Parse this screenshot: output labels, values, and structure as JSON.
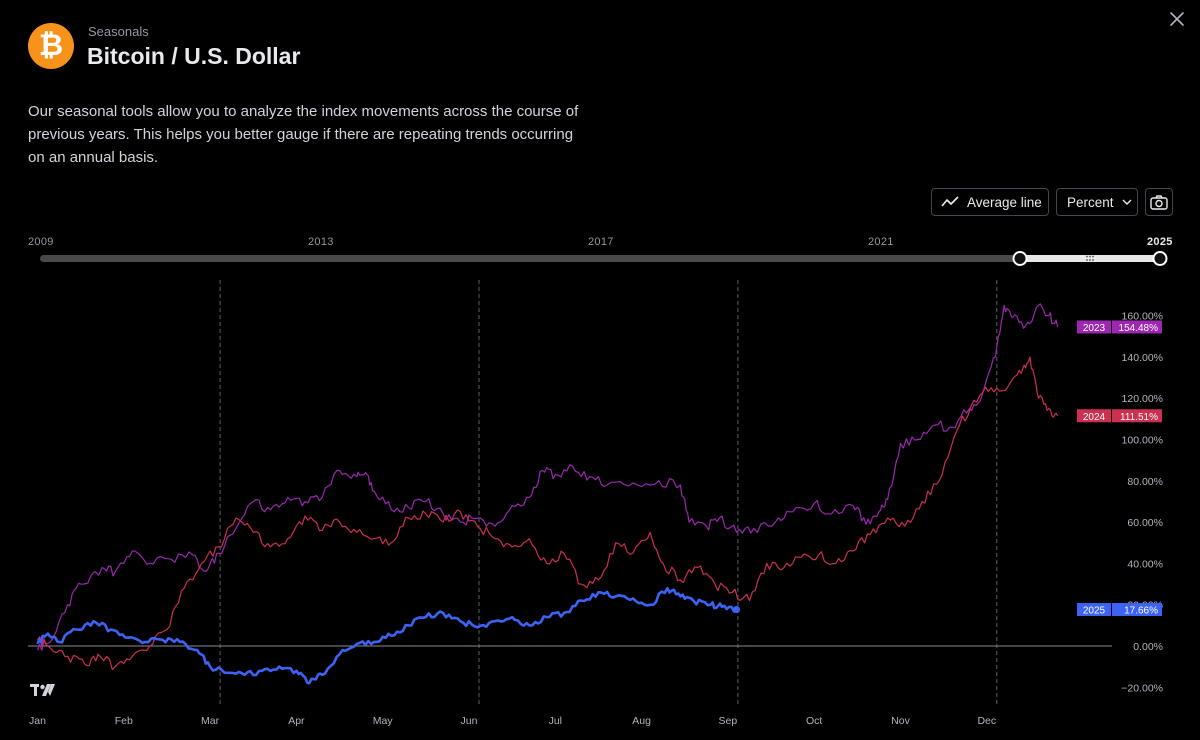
{
  "header": {
    "kicker": "Seasonals",
    "title": "Bitcoin / U.S. Dollar",
    "logo_symbol": "₿"
  },
  "description": "Our seasonal tools allow you to analyze the index movements across the course of previous years. This helps you better gauge if there are repeating trends occurring on an annual basis.",
  "toolbar": {
    "average_line_label": "Average line",
    "mode_label": "Percent"
  },
  "year_range": {
    "ticks": [
      "2009",
      "2013",
      "2017",
      "2021",
      "2025"
    ],
    "selected_start": 2023,
    "selected_end": 2025
  },
  "colors": {
    "series_2023": "#9c27b0",
    "series_2024": "#cc2f4f",
    "series_2025": "#3d63f5",
    "logo": "#f7931a"
  },
  "chart_data": {
    "type": "line",
    "x_label_months": [
      "Jan",
      "Feb",
      "Mar",
      "Apr",
      "May",
      "Jun",
      "Jul",
      "Aug",
      "Sep",
      "Oct",
      "Nov",
      "Dec"
    ],
    "y_tick_labels": [
      "160.00%",
      "140.00%",
      "120.00%",
      "100.00%",
      "80.00%",
      "60.00%",
      "40.00%",
      "20.00%",
      "0.00%",
      "−20.00%"
    ],
    "ylim": [
      -20,
      165
    ],
    "zero_line": true,
    "quarter_dividers_months": [
      "Mar",
      "Jun",
      "Sep",
      "Dec"
    ],
    "series": [
      {
        "name": "2023",
        "color": "#9c27b0",
        "last_label": "154.48%",
        "points": [
          [
            0,
            -2
          ],
          [
            0.15,
            2
          ],
          [
            0.35,
            20
          ],
          [
            0.5,
            30
          ],
          [
            0.75,
            38
          ],
          [
            0.9,
            36
          ],
          [
            1.1,
            46
          ],
          [
            1.3,
            40
          ],
          [
            1.55,
            42
          ],
          [
            1.8,
            44
          ],
          [
            1.95,
            36
          ],
          [
            2.1,
            45
          ],
          [
            2.3,
            57
          ],
          [
            2.5,
            70
          ],
          [
            2.7,
            66
          ],
          [
            2.9,
            72
          ],
          [
            3.1,
            70
          ],
          [
            3.3,
            72
          ],
          [
            3.5,
            85
          ],
          [
            3.7,
            82
          ],
          [
            3.8,
            84
          ],
          [
            3.9,
            75
          ],
          [
            4.1,
            66
          ],
          [
            4.3,
            67
          ],
          [
            4.5,
            70
          ],
          [
            4.7,
            64
          ],
          [
            4.9,
            60
          ],
          [
            5.1,
            62
          ],
          [
            5.3,
            58
          ],
          [
            5.5,
            68
          ],
          [
            5.7,
            72
          ],
          [
            5.85,
            85
          ],
          [
            6.0,
            83
          ],
          [
            6.2,
            87
          ],
          [
            6.4,
            82
          ],
          [
            6.6,
            78
          ],
          [
            6.9,
            79
          ],
          [
            7.2,
            80
          ],
          [
            7.45,
            78
          ],
          [
            7.55,
            60
          ],
          [
            7.75,
            58
          ],
          [
            7.9,
            62
          ],
          [
            8.1,
            55
          ],
          [
            8.3,
            57
          ],
          [
            8.55,
            60
          ],
          [
            8.75,
            65
          ],
          [
            9.0,
            69
          ],
          [
            9.2,
            64
          ],
          [
            9.45,
            68
          ],
          [
            9.6,
            59
          ],
          [
            9.75,
            65
          ],
          [
            9.85,
            71
          ],
          [
            10.0,
            98
          ],
          [
            10.2,
            100
          ],
          [
            10.4,
            107
          ],
          [
            10.6,
            106
          ],
          [
            10.8,
            115
          ],
          [
            10.95,
            122
          ],
          [
            11.1,
            140
          ],
          [
            11.2,
            165
          ],
          [
            11.3,
            159
          ],
          [
            11.45,
            155
          ],
          [
            11.6,
            165
          ],
          [
            11.72,
            160
          ],
          [
            11.82,
            154.5
          ]
        ]
      },
      {
        "name": "2024",
        "color": "#cc2f4f",
        "last_label": "111.51%",
        "points": [
          [
            0,
            3
          ],
          [
            0.15,
            -1
          ],
          [
            0.35,
            -5
          ],
          [
            0.55,
            -9
          ],
          [
            0.7,
            -4
          ],
          [
            0.9,
            -10
          ],
          [
            1.1,
            -5
          ],
          [
            1.3,
            0
          ],
          [
            1.5,
            8
          ],
          [
            1.7,
            28
          ],
          [
            1.9,
            40
          ],
          [
            2.1,
            48
          ],
          [
            2.3,
            62
          ],
          [
            2.5,
            55
          ],
          [
            2.7,
            48
          ],
          [
            2.9,
            52
          ],
          [
            3.1,
            63
          ],
          [
            3.3,
            56
          ],
          [
            3.5,
            60
          ],
          [
            3.7,
            55
          ],
          [
            3.9,
            52
          ],
          [
            4.1,
            50
          ],
          [
            4.3,
            62
          ],
          [
            4.5,
            64
          ],
          [
            4.7,
            60
          ],
          [
            4.9,
            65
          ],
          [
            5.1,
            58
          ],
          [
            5.3,
            52
          ],
          [
            5.5,
            48
          ],
          [
            5.7,
            52
          ],
          [
            5.9,
            40
          ],
          [
            6.1,
            45
          ],
          [
            6.3,
            30
          ],
          [
            6.5,
            32
          ],
          [
            6.7,
            50
          ],
          [
            6.9,
            45
          ],
          [
            7.1,
            55
          ],
          [
            7.25,
            40
          ],
          [
            7.45,
            32
          ],
          [
            7.65,
            38
          ],
          [
            7.85,
            30
          ],
          [
            8.05,
            26
          ],
          [
            8.25,
            22
          ],
          [
            8.45,
            40
          ],
          [
            8.65,
            38
          ],
          [
            8.85,
            43
          ],
          [
            9.05,
            44
          ],
          [
            9.25,
            40
          ],
          [
            9.45,
            46
          ],
          [
            9.65,
            54
          ],
          [
            9.85,
            62
          ],
          [
            10.05,
            58
          ],
          [
            10.25,
            70
          ],
          [
            10.45,
            80
          ],
          [
            10.65,
            104
          ],
          [
            10.85,
            119
          ],
          [
            11.05,
            125
          ],
          [
            11.25,
            126
          ],
          [
            11.4,
            132
          ],
          [
            11.5,
            140
          ],
          [
            11.6,
            120
          ],
          [
            11.72,
            115
          ],
          [
            11.82,
            111.5
          ]
        ]
      },
      {
        "name": "2025",
        "color": "#3d63f5",
        "last_label": "17.66%",
        "points": [
          [
            0,
            1
          ],
          [
            0.12,
            6
          ],
          [
            0.25,
            2
          ],
          [
            0.45,
            8
          ],
          [
            0.65,
            12
          ],
          [
            0.85,
            8
          ],
          [
            1.05,
            4
          ],
          [
            1.25,
            2
          ],
          [
            1.45,
            3
          ],
          [
            1.65,
            2
          ],
          [
            1.85,
            -2
          ],
          [
            2.0,
            -10
          ],
          [
            2.2,
            -13
          ],
          [
            2.4,
            -14
          ],
          [
            2.6,
            -12
          ],
          [
            2.8,
            -10
          ],
          [
            3.0,
            -12
          ],
          [
            3.15,
            -18
          ],
          [
            3.3,
            -14
          ],
          [
            3.5,
            -4
          ],
          [
            3.7,
            1
          ],
          [
            3.9,
            2
          ],
          [
            4.1,
            5
          ],
          [
            4.3,
            10
          ],
          [
            4.5,
            14
          ],
          [
            4.7,
            16
          ],
          [
            4.9,
            12
          ],
          [
            5.1,
            9
          ],
          [
            5.3,
            12
          ],
          [
            5.5,
            14
          ],
          [
            5.7,
            10
          ],
          [
            5.9,
            14
          ],
          [
            6.1,
            16
          ],
          [
            6.3,
            22
          ],
          [
            6.5,
            26
          ],
          [
            6.7,
            24
          ],
          [
            6.9,
            23
          ],
          [
            7.1,
            20
          ],
          [
            7.3,
            28
          ],
          [
            7.45,
            24
          ],
          [
            7.6,
            22
          ],
          [
            7.8,
            20
          ],
          [
            7.93,
            19
          ],
          [
            8.1,
            17.66
          ]
        ]
      }
    ]
  }
}
